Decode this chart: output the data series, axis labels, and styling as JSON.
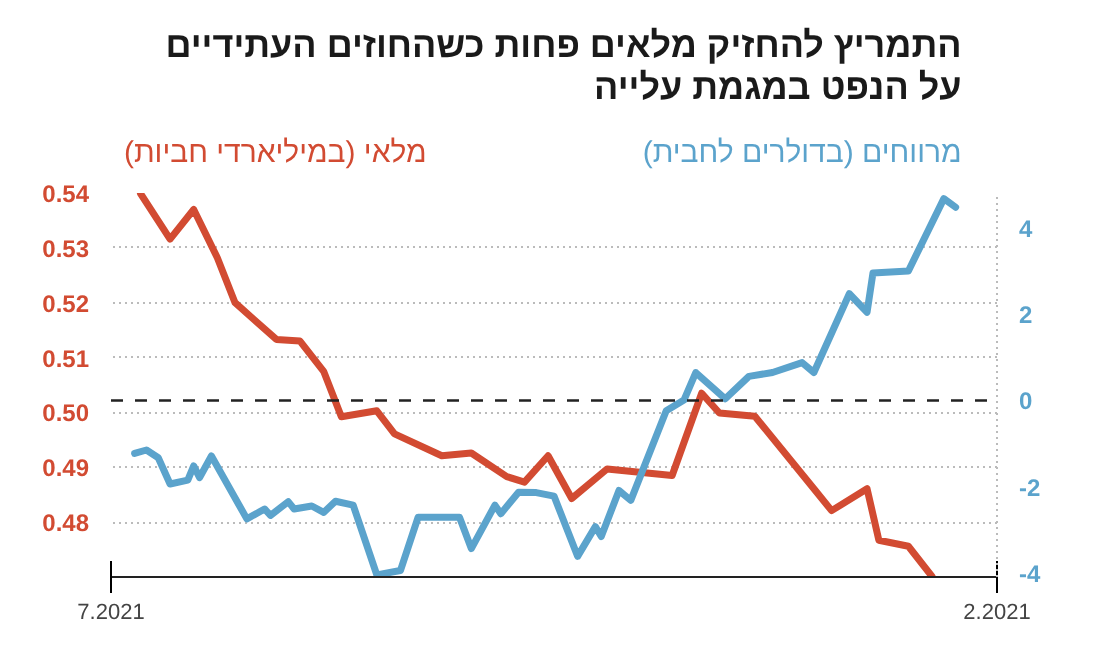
{
  "chart_data": {
    "type": "line",
    "title": "התמריץ להחזיק מלאים פחות כשהחוזים העתידיים\nעל הנפט במגמת עלייה",
    "ylabel": "מלאי (במיליארדי חביות)",
    "y2label": "מרווחים (בדולרים לחבית)",
    "xlim": [
      "2021-07-01",
      "2021-02-01"
    ],
    "xticks": [
      {
        "value": "2021-07-01",
        "label": "7.2021"
      },
      {
        "value": "2021-02-01",
        "label": "2.2021"
      }
    ],
    "ylim": [
      0.47,
      0.54
    ],
    "yticks": [
      0.48,
      0.49,
      {
        "value": 0.5,
        "label": "0.50"
      },
      0.51,
      0.52,
      0.53,
      0.54
    ],
    "y2lim": [
      -4.1,
      4.82
    ],
    "y2ticks": [
      -4,
      -2,
      0,
      2,
      4
    ],
    "grid": "y",
    "line_style": "solid",
    "ref_lines": [
      {
        "axis": "y2",
        "value": 0,
        "label": null,
        "color": "#222222",
        "line_style": "dashed"
      }
    ],
    "series": [
      {
        "color": "#d24b32",
        "x": [
          "2021-06-26",
          "2021-06-21",
          "2021-06-17",
          "2021-06-13",
          "2021-06-10",
          "2021-06-03",
          "2021-05-30",
          "2021-05-26",
          "2021-05-23",
          "2021-05-17",
          "2021-05-14",
          "2021-05-06",
          "2021-05-01",
          "2021-04-25",
          "2021-04-22",
          "2021-04-18",
          "2021-04-14",
          "2021-04-08",
          "2021-03-28",
          "2021-03-23",
          "2021-03-20",
          "2021-03-14",
          "2021-03-04",
          "2021-03-01",
          "2021-02-23",
          "2021-02-21",
          "2021-02-16",
          "2021-02-12"
        ],
        "values": [
          0.5399,
          0.5316,
          0.537,
          0.5282,
          0.52,
          0.5133,
          0.513,
          0.5075,
          0.4992,
          0.5003,
          0.4961,
          0.4921,
          0.4926,
          0.4883,
          0.4873,
          0.4921,
          0.4843,
          0.4897,
          0.4885,
          0.5035,
          0.4999,
          0.4993,
          0.4861,
          0.4821,
          0.4861,
          0.4767,
          0.4756,
          0.4701
        ]
      },
      {
        "color": "#5ba3cc",
        "axis": "y2",
        "x": [
          "2021-06-27",
          "2021-06-25",
          "2021-06-23",
          "2021-06-21",
          "2021-06-18",
          "2021-06-17",
          "2021-06-16",
          "2021-06-14",
          "2021-06-08",
          "2021-06-05",
          "2021-06-04",
          "2021-06-01",
          "2021-05-31",
          "2021-05-28",
          "2021-05-26",
          "2021-05-24",
          "2021-05-21",
          "2021-05-17",
          "2021-05-13",
          "2021-05-10",
          "2021-05-03",
          "2021-05-01",
          "2021-04-27",
          "2021-04-26",
          "2021-04-23",
          "2021-04-20",
          "2021-04-17",
          "2021-04-13",
          "2021-04-10",
          "2021-04-09",
          "2021-04-06",
          "2021-04-04",
          "2021-03-29",
          "2021-03-26",
          "2021-03-24",
          "2021-03-19",
          "2021-03-15",
          "2021-03-11",
          "2021-03-06",
          "2021-03-04",
          "2021-02-26",
          "2021-02-23",
          "2021-02-22",
          "2021-02-16",
          "2021-02-10",
          "2021-02-08"
        ],
        "values": [
          -1.23,
          -1.15,
          -1.33,
          -1.94,
          -1.85,
          -1.52,
          -1.79,
          -1.29,
          -2.75,
          -2.52,
          -2.67,
          -2.35,
          -2.52,
          -2.45,
          -2.6,
          -2.34,
          -2.43,
          -4.05,
          -3.95,
          -2.71,
          -2.71,
          -3.44,
          -2.43,
          -2.63,
          -2.13,
          -2.14,
          -2.22,
          -3.62,
          -2.93,
          -3.16,
          -2.09,
          -2.32,
          -0.24,
          0.01,
          0.65,
          0.04,
          0.56,
          0.65,
          0.88,
          0.65,
          2.48,
          2.05,
          2.96,
          3.01,
          4.69,
          4.49
        ]
      }
    ]
  }
}
